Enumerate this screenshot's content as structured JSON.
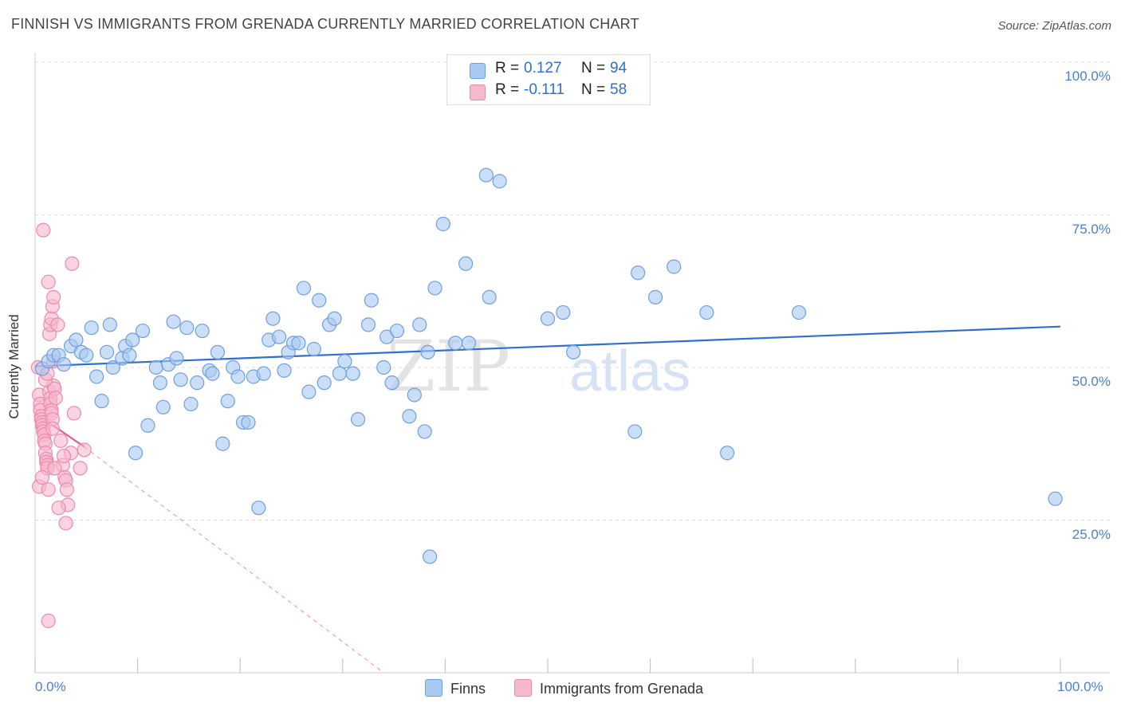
{
  "title": "FINNISH VS IMMIGRANTS FROM GRENADA CURRENTLY MARRIED CORRELATION CHART",
  "source": "Source: ZipAtlas.com",
  "watermark": {
    "zip": "ZIP",
    "atlas": "atlas"
  },
  "colors": {
    "finns_fill": "#a9c8f2",
    "finns_stroke": "#6f9fe0",
    "finns_line": "#2f6fd0",
    "grenada_fill": "#f6b8cb",
    "grenada_stroke": "#ee8aab",
    "grenada_line": "#e0608c",
    "grid": "#dddddd",
    "tick_text": "#4a7fd4"
  },
  "legend_top": {
    "rows": [
      {
        "series": "Finns",
        "r_label": "R =",
        "r_value": "0.127",
        "n_label": "N =",
        "n_value": "94"
      },
      {
        "series": "Immigrants from Grenada",
        "r_label": "R =",
        "r_value": "-0.111",
        "n_label": "N =",
        "n_value": "58"
      }
    ]
  },
  "chart_data": {
    "type": "scatter",
    "title": "FINNISH VS IMMIGRANTS FROM GRENADA CURRENTLY MARRIED CORRELATION CHART",
    "xlabel": "",
    "ylabel": "Currently Married",
    "xlim": [
      0,
      100
    ],
    "ylim": [
      0,
      104
    ],
    "x_tick_labels": [
      "0.0%",
      "100.0%"
    ],
    "y_ticks": [
      {
        "value": 25,
        "label": "25.0%"
      },
      {
        "value": 50,
        "label": "50.0%"
      },
      {
        "value": 75,
        "label": "75.0%"
      },
      {
        "value": 100,
        "label": "100.0%"
      }
    ],
    "grid": true,
    "legend_position": "bottom-center",
    "series": [
      {
        "name": "Finns",
        "trend": {
          "x": [
            0,
            100
          ],
          "y": [
            50.2,
            56.7
          ]
        },
        "points": [
          [
            0.7,
            49.8
          ],
          [
            1.3,
            51.0
          ],
          [
            1.8,
            52.0
          ],
          [
            2.3,
            52.0
          ],
          [
            2.8,
            50.5
          ],
          [
            3.5,
            53.5
          ],
          [
            4.0,
            54.5
          ],
          [
            4.5,
            52.5
          ],
          [
            5.0,
            52.0
          ],
          [
            5.5,
            56.5
          ],
          [
            6.0,
            48.5
          ],
          [
            6.5,
            44.5
          ],
          [
            7.0,
            52.5
          ],
          [
            7.3,
            57.0
          ],
          [
            7.6,
            50.0
          ],
          [
            8.5,
            51.5
          ],
          [
            8.8,
            53.5
          ],
          [
            9.2,
            52.0
          ],
          [
            9.5,
            54.5
          ],
          [
            9.8,
            36.0
          ],
          [
            10.5,
            56.0
          ],
          [
            11.0,
            40.5
          ],
          [
            11.8,
            50.0
          ],
          [
            12.2,
            47.5
          ],
          [
            12.5,
            43.5
          ],
          [
            13.0,
            50.5
          ],
          [
            13.5,
            57.5
          ],
          [
            13.8,
            51.5
          ],
          [
            14.2,
            48.0
          ],
          [
            14.8,
            56.5
          ],
          [
            15.2,
            44.0
          ],
          [
            15.8,
            47.5
          ],
          [
            16.3,
            56.0
          ],
          [
            17.0,
            49.5
          ],
          [
            17.3,
            49.0
          ],
          [
            17.8,
            52.5
          ],
          [
            18.3,
            37.5
          ],
          [
            18.8,
            44.5
          ],
          [
            19.3,
            50.0
          ],
          [
            19.8,
            48.5
          ],
          [
            20.3,
            41.0
          ],
          [
            20.8,
            41.0
          ],
          [
            21.3,
            48.5
          ],
          [
            21.8,
            27.0
          ],
          [
            22.3,
            49.0
          ],
          [
            22.8,
            54.5
          ],
          [
            23.2,
            58.0
          ],
          [
            23.8,
            55.0
          ],
          [
            24.3,
            49.5
          ],
          [
            24.7,
            52.5
          ],
          [
            25.2,
            54.0
          ],
          [
            25.7,
            54.0
          ],
          [
            26.2,
            63.0
          ],
          [
            26.7,
            46.0
          ],
          [
            27.2,
            53.0
          ],
          [
            27.7,
            61.0
          ],
          [
            28.2,
            47.5
          ],
          [
            28.7,
            57.0
          ],
          [
            29.2,
            58.0
          ],
          [
            29.7,
            49.0
          ],
          [
            30.2,
            51.0
          ],
          [
            31.0,
            49.0
          ],
          [
            31.5,
            41.5
          ],
          [
            32.5,
            57.0
          ],
          [
            32.8,
            61.0
          ],
          [
            34.0,
            50.0
          ],
          [
            34.3,
            55.0
          ],
          [
            34.8,
            47.5
          ],
          [
            35.3,
            56.0
          ],
          [
            36.5,
            42.0
          ],
          [
            37.0,
            45.5
          ],
          [
            37.5,
            57.0
          ],
          [
            38.0,
            39.5
          ],
          [
            38.3,
            52.5
          ],
          [
            39.0,
            63.0
          ],
          [
            39.8,
            73.5
          ],
          [
            41.0,
            54.0
          ],
          [
            42.0,
            67.0
          ],
          [
            42.3,
            54.0
          ],
          [
            44.0,
            81.5
          ],
          [
            44.3,
            61.5
          ],
          [
            45.3,
            80.5
          ],
          [
            50.0,
            58.0
          ],
          [
            51.5,
            59.0
          ],
          [
            52.5,
            52.5
          ],
          [
            58.5,
            39.5
          ],
          [
            58.8,
            65.5
          ],
          [
            60.5,
            61.5
          ],
          [
            62.3,
            66.5
          ],
          [
            65.5,
            59.0
          ],
          [
            67.5,
            36.0
          ],
          [
            74.5,
            59.0
          ],
          [
            99.5,
            28.5
          ],
          [
            38.5,
            19.0
          ]
        ]
      },
      {
        "name": "Immigrants from Grenada",
        "trend": {
          "x": [
            0,
            4.8
          ],
          "y": [
            42.5,
            37.0
          ]
        },
        "trend_extension": {
          "x": [
            4.8,
            34.0
          ],
          "y": [
            37.0,
            0
          ]
        },
        "points": [
          [
            0.3,
            50.0
          ],
          [
            0.4,
            45.5
          ],
          [
            0.5,
            44.0
          ],
          [
            0.5,
            43.0
          ],
          [
            0.6,
            42.0
          ],
          [
            0.6,
            41.5
          ],
          [
            0.7,
            41.0
          ],
          [
            0.7,
            40.5
          ],
          [
            0.8,
            40.0
          ],
          [
            0.8,
            39.5
          ],
          [
            0.9,
            39.0
          ],
          [
            0.9,
            38.0
          ],
          [
            1.0,
            37.5
          ],
          [
            1.0,
            36.0
          ],
          [
            1.1,
            35.0
          ],
          [
            1.1,
            34.5
          ],
          [
            1.2,
            34.0
          ],
          [
            1.2,
            33.5
          ],
          [
            0.4,
            30.5
          ],
          [
            0.7,
            32.0
          ],
          [
            1.3,
            30.0
          ],
          [
            1.4,
            46.0
          ],
          [
            1.5,
            45.0
          ],
          [
            1.5,
            44.0
          ],
          [
            1.6,
            43.0
          ],
          [
            1.6,
            42.5
          ],
          [
            1.7,
            41.5
          ],
          [
            1.7,
            40.0
          ],
          [
            1.8,
            51.0
          ],
          [
            1.8,
            47.0
          ],
          [
            1.9,
            46.5
          ],
          [
            2.0,
            45.0
          ],
          [
            1.0,
            48.0
          ],
          [
            1.2,
            49.0
          ],
          [
            1.4,
            55.5
          ],
          [
            1.5,
            57.0
          ],
          [
            1.6,
            58.0
          ],
          [
            1.7,
            60.0
          ],
          [
            1.8,
            61.5
          ],
          [
            1.3,
            64.0
          ],
          [
            0.8,
            72.5
          ],
          [
            2.2,
            57.0
          ],
          [
            2.5,
            38.0
          ],
          [
            2.7,
            34.0
          ],
          [
            2.9,
            32.0
          ],
          [
            3.0,
            31.5
          ],
          [
            3.1,
            30.0
          ],
          [
            3.2,
            27.5
          ],
          [
            3.0,
            24.5
          ],
          [
            3.5,
            36.0
          ],
          [
            3.8,
            42.5
          ],
          [
            4.4,
            33.5
          ],
          [
            4.8,
            36.5
          ],
          [
            2.8,
            35.5
          ],
          [
            2.3,
            27.0
          ],
          [
            1.9,
            33.5
          ],
          [
            1.3,
            8.5
          ],
          [
            3.6,
            67.0
          ]
        ]
      }
    ]
  }
}
